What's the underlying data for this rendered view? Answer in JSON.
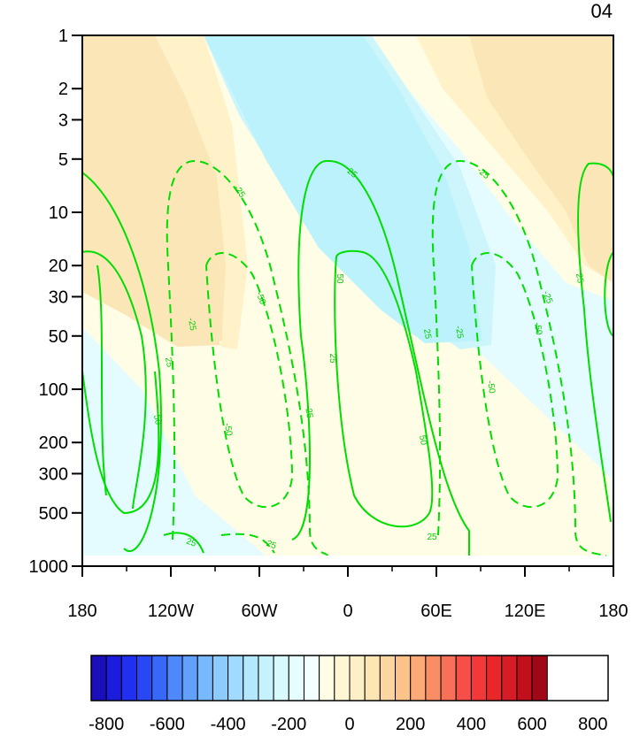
{
  "chart_data": {
    "type": "heatmap",
    "title": "04",
    "xlabel": "",
    "ylabel": "",
    "x_ticks": [
      "180",
      "120W",
      "60W",
      "0",
      "60E",
      "120E",
      "180"
    ],
    "y_ticks": [
      "1",
      "2",
      "3",
      "5",
      "10",
      "20",
      "30",
      "50",
      "100",
      "200",
      "300",
      "500",
      "1000"
    ],
    "y_scale": "log",
    "y_reversed": true,
    "xlim": [
      -180,
      180
    ],
    "ylim": [
      1000,
      1
    ],
    "colorbar": {
      "min": -800,
      "max": 800,
      "step": 50,
      "labels": [
        "-800",
        "-600",
        "-400",
        "-200",
        "0",
        "200",
        "400",
        "600",
        "800"
      ],
      "colormap": "blue-white-red diverging"
    },
    "filled_regions": [
      {
        "level": "0 to 50",
        "color": "#fffde6"
      },
      {
        "level": "50 to 100",
        "color": "#fff2c8"
      },
      {
        "level": "100 to 150",
        "color": "#fbe6b8"
      },
      {
        "level": "-50 to 0",
        "color": "#e4fcff"
      },
      {
        "level": "-100 to -50",
        "color": "#cdf6fc"
      },
      {
        "level": "-150 to -100",
        "color": "#bcf2fb"
      }
    ],
    "contour_lines": {
      "color": "#00cc00",
      "levels": [
        -50,
        -25,
        25,
        50
      ],
      "negative_style": "dashed",
      "labels": [
        "25",
        "50",
        "-25",
        "-50"
      ]
    }
  }
}
